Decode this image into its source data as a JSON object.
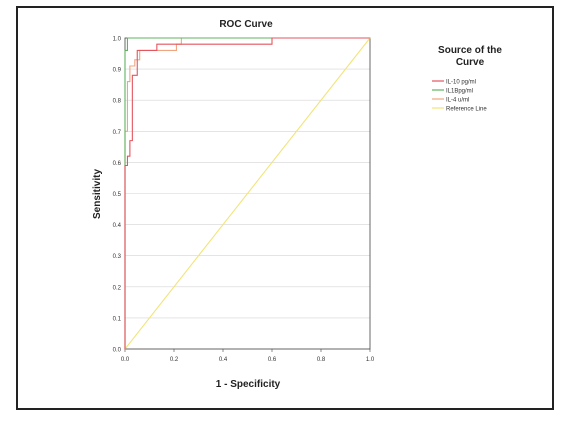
{
  "chart_data": {
    "type": "line",
    "title": "ROC Curve",
    "xlabel": "1 - Specificity",
    "ylabel": "Sensitivity",
    "xlim": [
      0.0,
      1.0
    ],
    "ylim": [
      0.0,
      1.0
    ],
    "xticks": [
      "0.0",
      "0.2",
      "0.4",
      "0.6",
      "0.8",
      "1.0"
    ],
    "yticks": [
      "0.0",
      "0.1",
      "0.2",
      "0.3",
      "0.4",
      "0.5",
      "0.6",
      "0.7",
      "0.8",
      "0.9",
      "1.0"
    ],
    "grid": "horizontal",
    "legend": {
      "title": "Source of the Curve",
      "placement": "right"
    },
    "series": [
      {
        "name": "IL-10 pg/ml",
        "color": "#e3555f",
        "x": [
          0,
          0,
          0.01,
          0.01,
          0.02,
          0.02,
          0.03,
          0.03,
          0.05,
          0.05,
          0.13,
          0.13,
          0.6,
          0.6,
          1.0
        ],
        "y": [
          0,
          0.59,
          0.59,
          0.62,
          0.62,
          0.67,
          0.67,
          0.88,
          0.88,
          0.96,
          0.96,
          0.98,
          0.98,
          1.0,
          1.0
        ]
      },
      {
        "name": "IL1Bpg/ml",
        "color": "#5fb35f",
        "x": [
          0,
          0,
          0.01,
          0.01,
          1.0
        ],
        "y": [
          0,
          0.96,
          0.96,
          1.0,
          1.0
        ]
      },
      {
        "name": "IL-4 u/ml",
        "color": "#f0a580",
        "x": [
          0,
          0,
          0.01,
          0.01,
          0.02,
          0.02,
          0.04,
          0.04,
          0.06,
          0.06,
          0.21,
          0.21,
          0.23,
          0.23,
          1.0
        ],
        "y": [
          0,
          0.7,
          0.7,
          0.86,
          0.86,
          0.91,
          0.91,
          0.93,
          0.93,
          0.96,
          0.96,
          0.98,
          0.98,
          1.0,
          1.0
        ]
      },
      {
        "name": "Reference Line",
        "color": "#f2e479",
        "x": [
          0,
          1.0
        ],
        "y": [
          0,
          1.0
        ]
      }
    ]
  }
}
